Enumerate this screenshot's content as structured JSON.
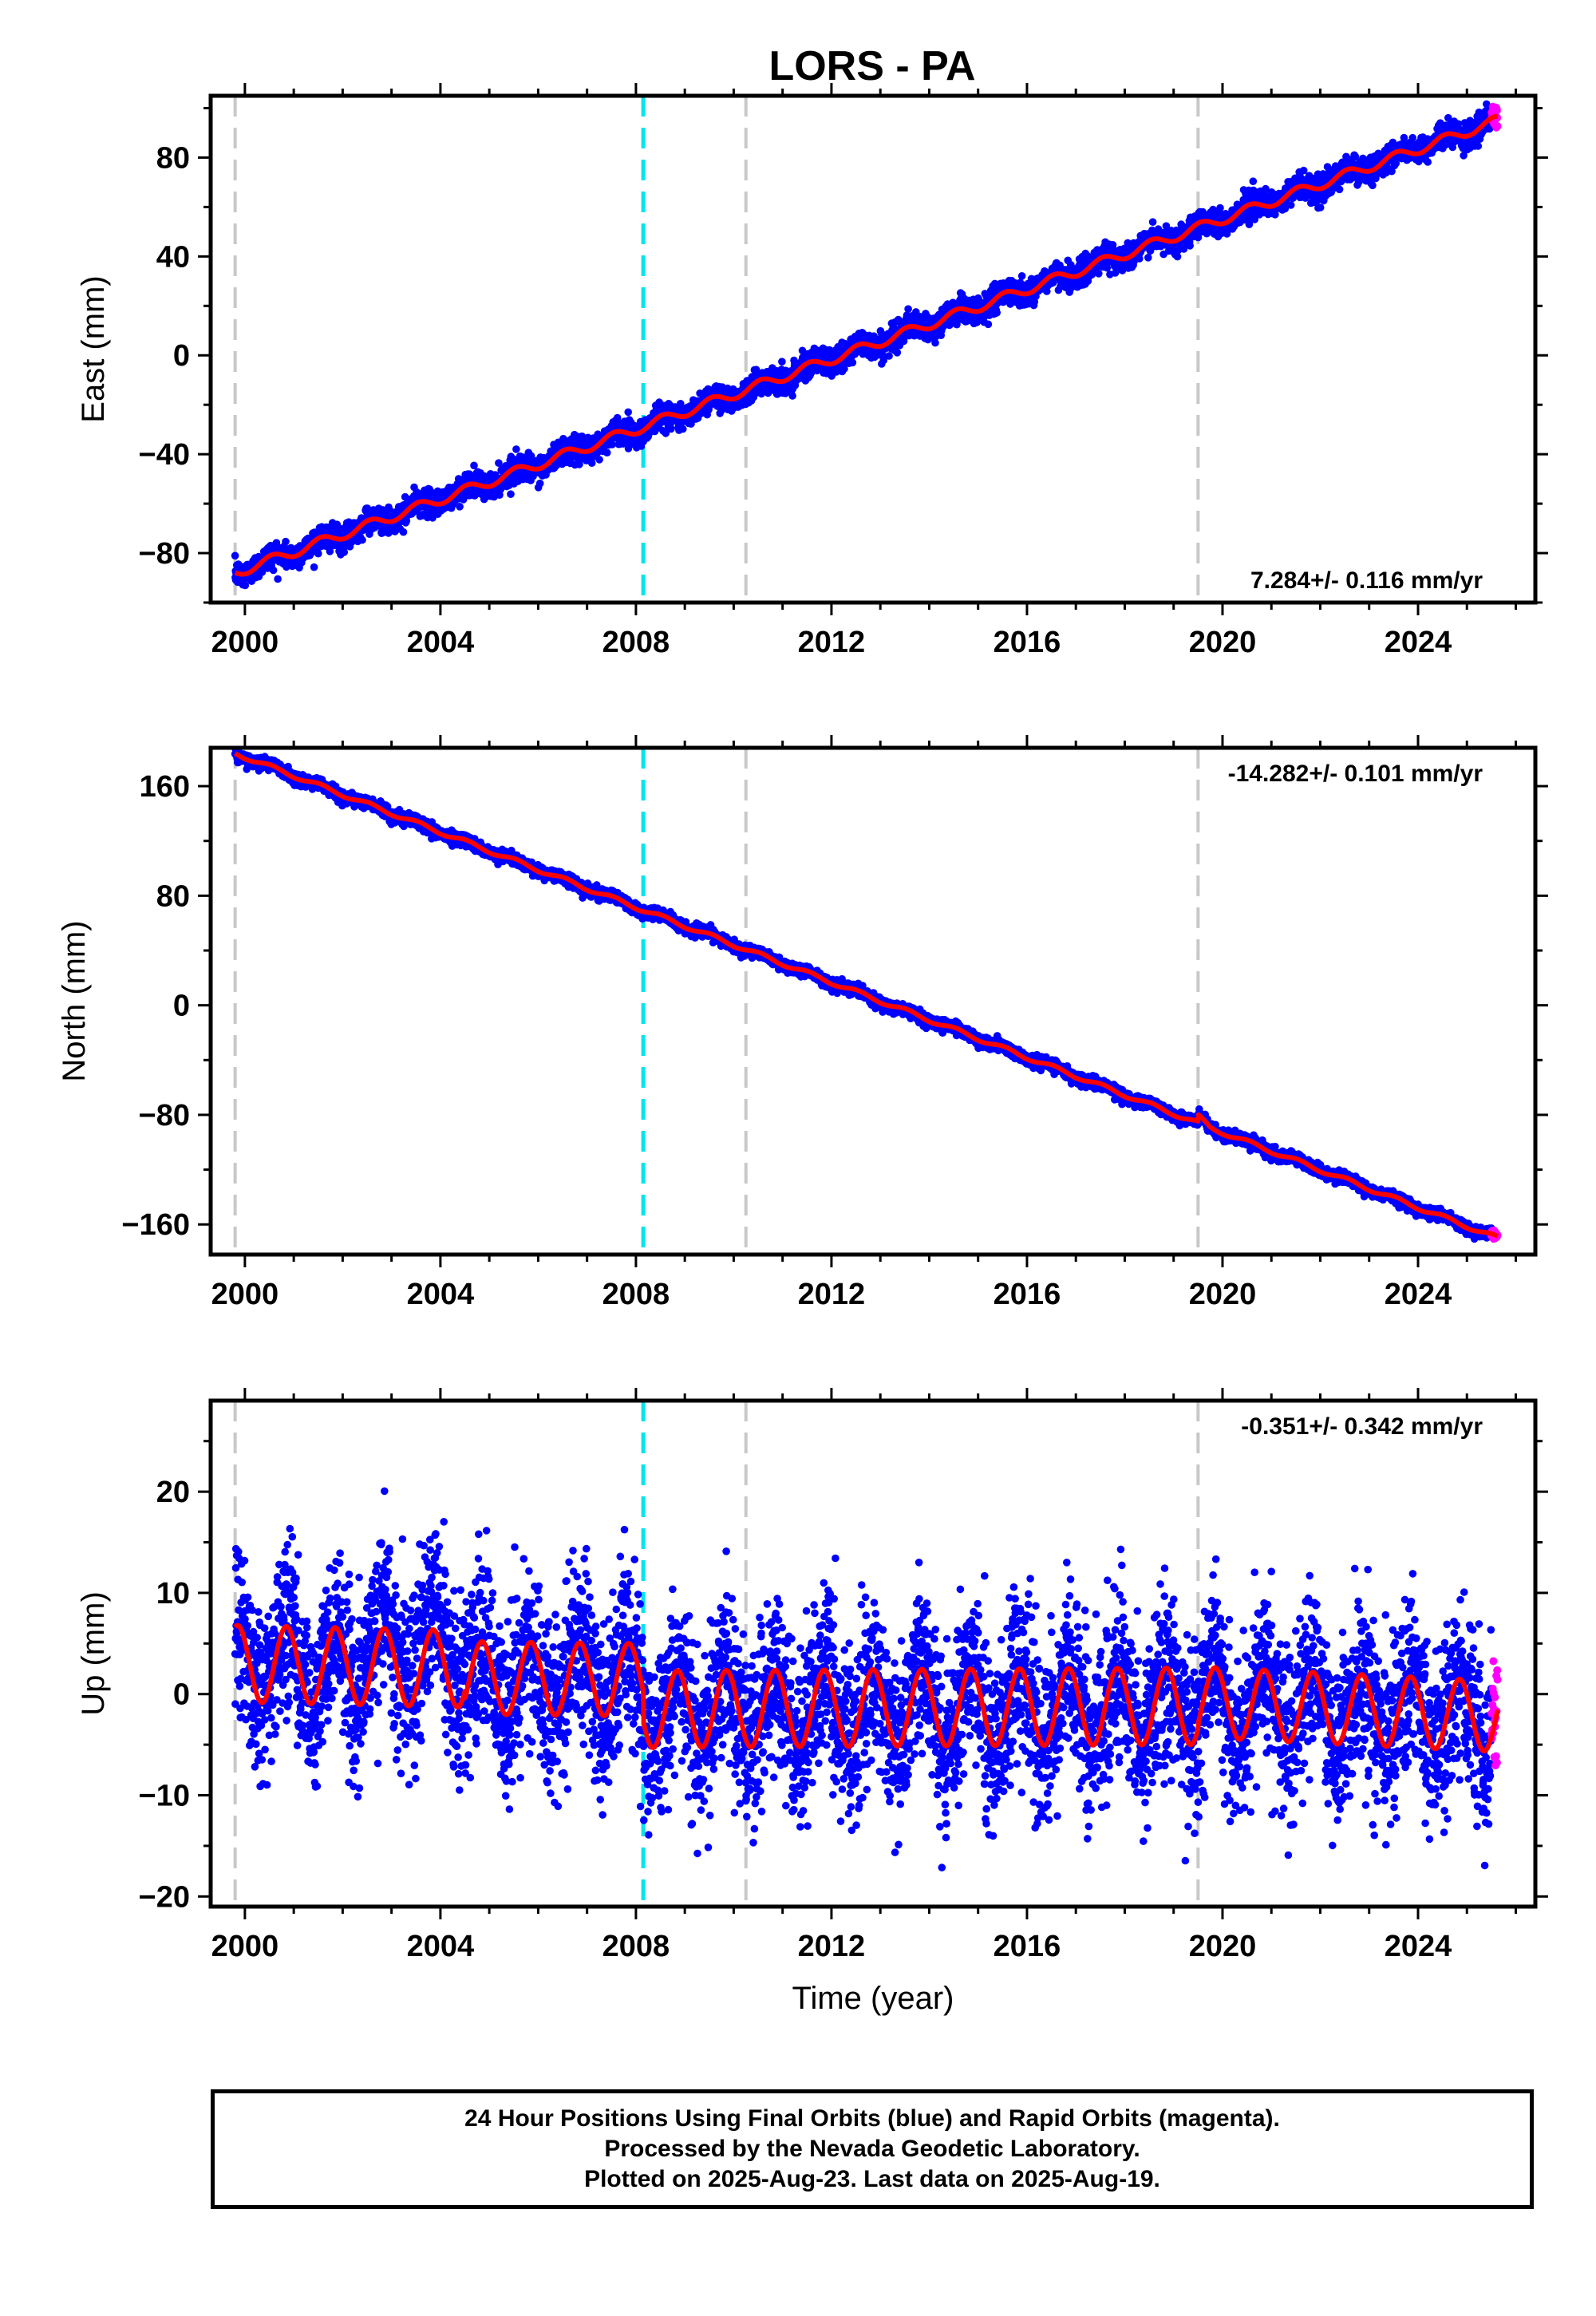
{
  "title": "LORS - PA",
  "footer": {
    "line1": "24 Hour Positions Using Final Orbits (blue) and Rapid Orbits (magenta).",
    "line2": "Processed by the Nevada Geodetic Laboratory.",
    "line3": "Plotted on 2025-Aug-23. Last data on 2025-Aug-19."
  },
  "colors": {
    "final_orbits": "#0000ff",
    "rapid_orbits": "#ff00ff",
    "model": "#ff0000",
    "equipment_change": "#c8c8c8",
    "earthquake": "#00e5ee"
  },
  "chart_data": [
    {
      "type": "scatter",
      "ylabel": "East (mm)",
      "xlabel": "",
      "xlim": [
        1999.3,
        2026.4
      ],
      "ylim": [
        -100,
        105
      ],
      "yticks": [
        -80,
        -40,
        0,
        40,
        80
      ],
      "xticks": [
        2000,
        2004,
        2008,
        2012,
        2016,
        2020,
        2024
      ],
      "rate_text": "7.284+/- 0.116 mm/yr",
      "rate_position": "bottom-right",
      "data_start": 1999.8,
      "data_end": 2025.63,
      "rapid_start": 2025.5,
      "trend": {
        "start": -88,
        "end": 95
      },
      "annual_amplitude": 2.0,
      "noise": 2.5,
      "steps": [],
      "gray_dashed_lines": [
        1999.8,
        2010.25,
        2019.5
      ],
      "cyan_dashed_lines": [
        2008.15
      ]
    },
    {
      "type": "scatter",
      "ylabel": "North (mm)",
      "xlabel": "",
      "xlim": [
        1999.3,
        2026.4
      ],
      "ylim": [
        -182,
        188
      ],
      "yticks": [
        -160,
        -80,
        0,
        80,
        160
      ],
      "xticks": [
        2000,
        2004,
        2008,
        2012,
        2016,
        2020,
        2024
      ],
      "rate_text": "-14.282+/- 0.101 mm/yr",
      "rate_position": "top-right",
      "data_start": 1999.8,
      "data_end": 2025.63,
      "rapid_start": 2025.5,
      "trend": {
        "start": 184,
        "end": -170
      },
      "annual_amplitude": 1.5,
      "noise": 2.0,
      "steps": [
        {
          "at": 2019.5,
          "size": 5
        }
      ],
      "gray_dashed_lines": [
        1999.8,
        2010.25,
        2019.5
      ],
      "cyan_dashed_lines": [
        2008.15
      ]
    },
    {
      "type": "scatter",
      "ylabel": "Up (mm)",
      "xlabel": "Time (year)",
      "xlim": [
        1999.3,
        2026.4
      ],
      "ylim": [
        -21,
        29
      ],
      "yticks": [
        -20,
        -10,
        0,
        10,
        20
      ],
      "xticks": [
        2000,
        2004,
        2008,
        2012,
        2016,
        2020,
        2024
      ],
      "rate_text": "-0.351+/- 0.342 mm/yr",
      "rate_position": "top-right",
      "data_start": 1999.8,
      "data_end": 2025.63,
      "rapid_start": 2025.5,
      "model_segments": [
        {
          "from": 1999.8,
          "to": 2004.5,
          "mean": 3.0,
          "amplitude": 3.8,
          "trend_end": 2.5
        },
        {
          "from": 2004.5,
          "to": 2008.15,
          "mean": 1.6,
          "amplitude": 3.6,
          "trend_end": 1.4
        },
        {
          "from": 2008.15,
          "to": 2019.5,
          "mean": -1.5,
          "amplitude": 3.8,
          "trend_end": -1.2
        },
        {
          "from": 2019.5,
          "to": 2025.63,
          "mean": -0.8,
          "amplitude": 3.5,
          "trend_end": -2.2
        }
      ],
      "noise": 4.2,
      "gray_dashed_lines": [
        1999.8,
        2010.25,
        2019.5
      ],
      "cyan_dashed_lines": [
        2008.15
      ]
    }
  ]
}
